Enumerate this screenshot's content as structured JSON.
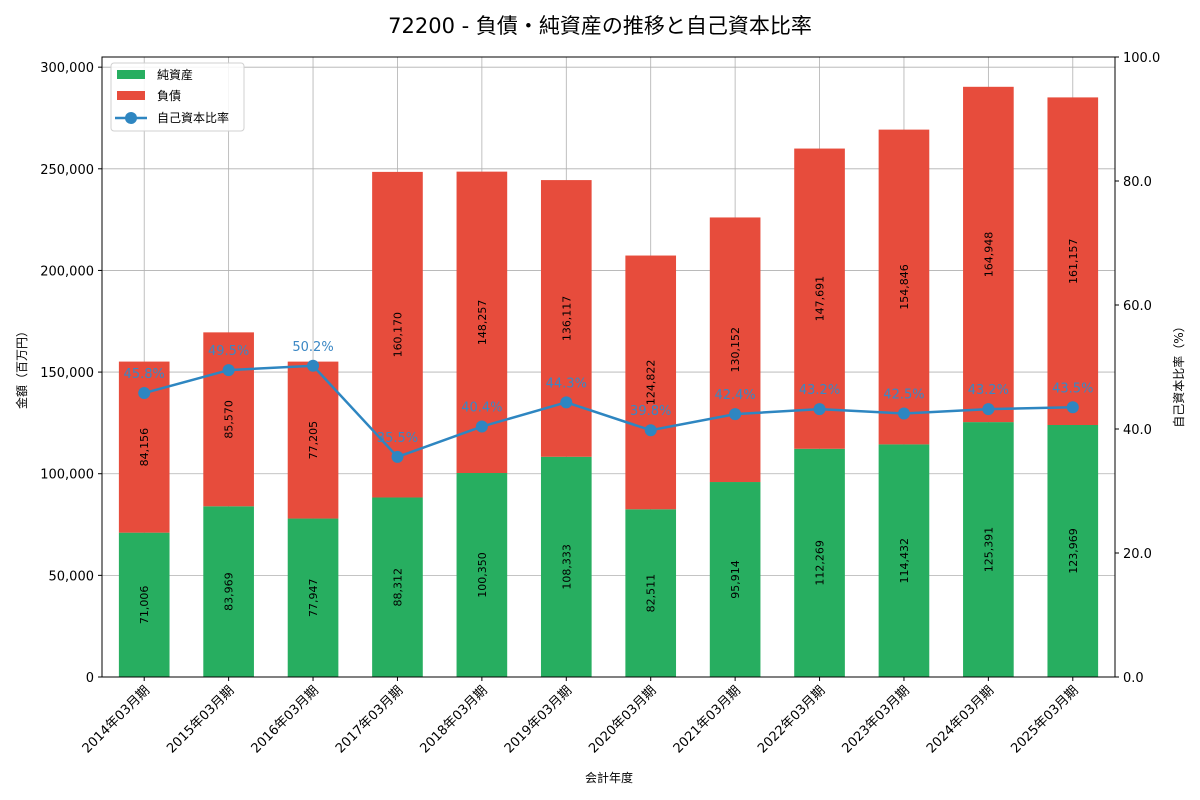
{
  "chart_data": {
    "type": "bar",
    "stacked": true,
    "title": "72200 - 負債・純資産の推移と自己資本比率",
    "xlabel": "会計年度",
    "ylabel": "金額（百万円）",
    "y2label": "自己資本比率（%）",
    "ylim": [
      0,
      305000
    ],
    "y2lim": [
      0,
      100
    ],
    "yticks": [
      0,
      50000,
      100000,
      150000,
      200000,
      250000,
      300000
    ],
    "ytick_labels": [
      "0",
      "50,000",
      "100,000",
      "150,000",
      "200,000",
      "250,000",
      "300,000"
    ],
    "y2ticks": [
      0,
      20,
      40,
      60,
      80,
      100
    ],
    "y2tick_labels": [
      "0.0",
      "20.0",
      "40.0",
      "60.0",
      "80.0",
      "100.0"
    ],
    "grid": true,
    "legend_position": "upper left",
    "categories": [
      "2014年03月期",
      "2015年03月期",
      "2016年03月期",
      "2017年03月期",
      "2018年03月期",
      "2019年03月期",
      "2020年03月期",
      "2021年03月期",
      "2022年03月期",
      "2023年03月期",
      "2024年03月期",
      "2025年03月期"
    ],
    "series": [
      {
        "name": "純資産",
        "type": "bar",
        "color": "#27ae60",
        "values": [
          71006,
          83969,
          77947,
          88312,
          100350,
          108333,
          82511,
          95914,
          112269,
          114432,
          125391,
          123969
        ],
        "labels": [
          "71,006",
          "83,969",
          "77,947",
          "88,312",
          "100,350",
          "108,333",
          "82,511",
          "95,914",
          "112,269",
          "114,432",
          "125,391",
          "123,969"
        ]
      },
      {
        "name": "負債",
        "type": "bar",
        "color": "#e74c3c",
        "values": [
          84156,
          85570,
          77205,
          160170,
          148257,
          136117,
          124822,
          130152,
          147691,
          154846,
          164948,
          161157
        ],
        "labels": [
          "84,156",
          "85,570",
          "77,205",
          "160,170",
          "148,257",
          "136,117",
          "124,822",
          "130,152",
          "147,691",
          "154,846",
          "164,948",
          "161,157"
        ]
      },
      {
        "name": "自己資本比率",
        "type": "line",
        "axis": "right",
        "color": "#2e86c1",
        "values": [
          45.8,
          49.5,
          50.2,
          35.5,
          40.4,
          44.3,
          39.8,
          42.4,
          43.2,
          42.5,
          43.2,
          43.5
        ],
        "labels": [
          "45.8%",
          "49.5%",
          "50.2%",
          "35.5%",
          "40.4%",
          "44.3%",
          "39.8%",
          "42.4%",
          "43.2%",
          "42.5%",
          "43.2%",
          "43.5%"
        ]
      }
    ]
  }
}
